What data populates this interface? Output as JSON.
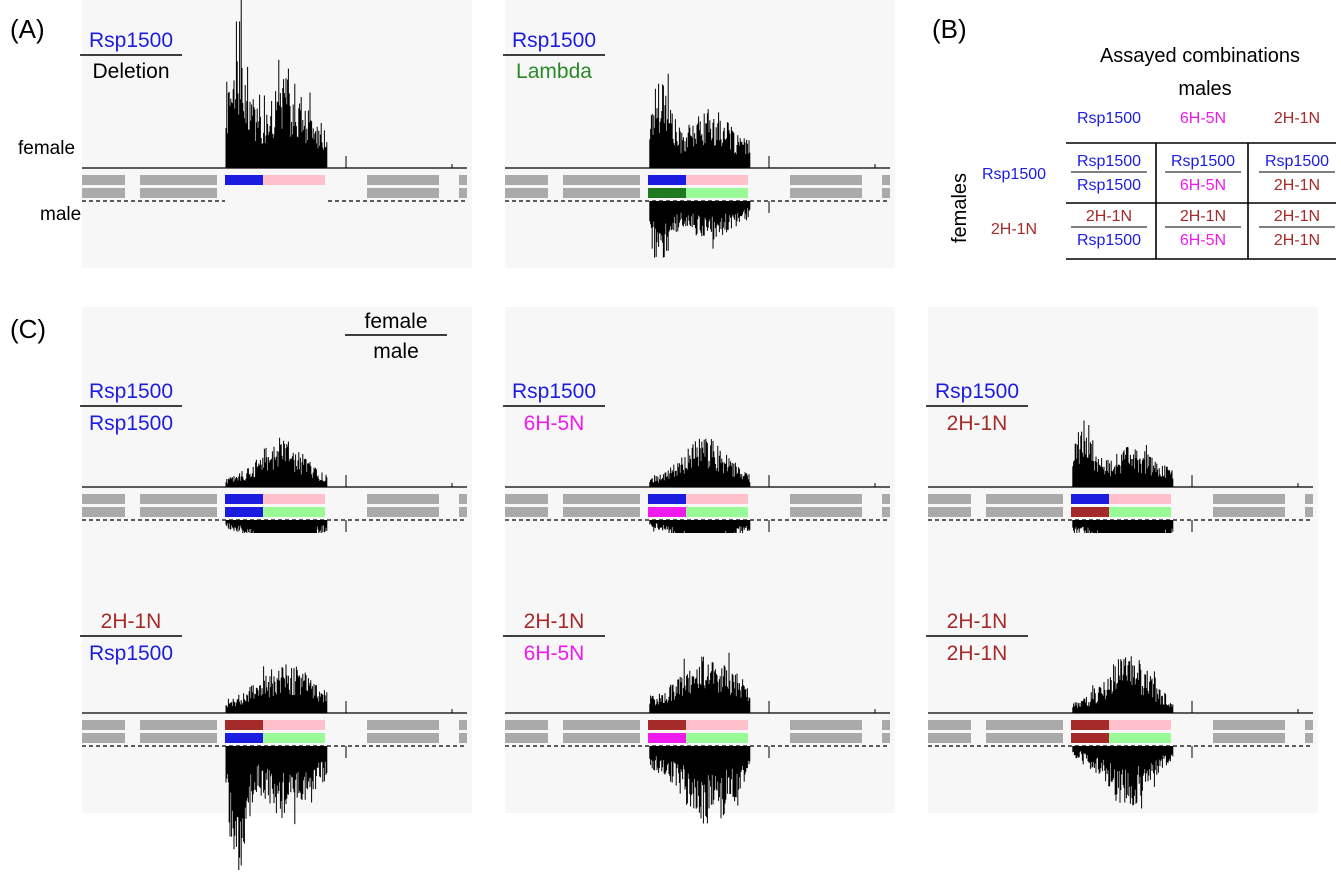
{
  "colors": {
    "rsp1500": "#1c1ce0",
    "h6_5n": "#ee1aee",
    "h2_1n": "#a52a2a",
    "lambda": "#2a8a2a",
    "lambda_bar": "#1f7a1f",
    "pink_bar": "#ffc0cb",
    "green_bar": "#98fb98",
    "gray_bar": "#aaaaaa",
    "panel_bg": "#f7f7f7"
  },
  "labels": {
    "panel_a": "(A)",
    "panel_b": "(B)",
    "panel_c": "(C)",
    "female": "female",
    "male": "male",
    "assayed_combinations": "Assayed combinations",
    "males": "males",
    "females": "females"
  },
  "panel_a": [
    {
      "top": "Rsp1500",
      "top_color": "rsp1500",
      "bottom": "Deletion",
      "bottom_color": "black"
    },
    {
      "top": "Rsp1500",
      "top_color": "rsp1500",
      "bottom": "Lambda",
      "bottom_color": "lambda"
    }
  ],
  "legend_c": {
    "top": "female",
    "bottom": "male"
  },
  "panel_b": {
    "col_headers": [
      {
        "text": "Rsp1500",
        "color": "rsp1500"
      },
      {
        "text": "6H-5N",
        "color": "h6_5n"
      },
      {
        "text": "2H-1N",
        "color": "h2_1n"
      }
    ],
    "row_headers": [
      {
        "text": "Rsp1500",
        "color": "rsp1500"
      },
      {
        "text": "2H-1N",
        "color": "h2_1n"
      }
    ],
    "cells": [
      [
        {
          "top": "Rsp1500",
          "tc": "rsp1500",
          "bottom": "Rsp1500",
          "bc": "rsp1500"
        },
        {
          "top": "Rsp1500",
          "tc": "rsp1500",
          "bottom": "6H-5N",
          "bc": "h6_5n"
        },
        {
          "top": "Rsp1500",
          "tc": "rsp1500",
          "bottom": "2H-1N",
          "bc": "h2_1n"
        }
      ],
      [
        {
          "top": "2H-1N",
          "tc": "h2_1n",
          "bottom": "Rsp1500",
          "bc": "rsp1500"
        },
        {
          "top": "2H-1N",
          "tc": "h2_1n",
          "bottom": "6H-5N",
          "bc": "h6_5n"
        },
        {
          "top": "2H-1N",
          "tc": "h2_1n",
          "bottom": "2H-1N",
          "bc": "h2_1n"
        }
      ]
    ]
  },
  "panel_c": [
    {
      "top": "Rsp1500",
      "tc": "rsp1500",
      "bottom": "Rsp1500",
      "bc": "rsp1500"
    },
    {
      "top": "Rsp1500",
      "tc": "rsp1500",
      "bottom": "6H-5N",
      "bc": "h6_5n"
    },
    {
      "top": "Rsp1500",
      "tc": "rsp1500",
      "bottom": "2H-1N",
      "bc": "h2_1n"
    },
    {
      "top": "2H-1N",
      "tc": "h2_1n",
      "bottom": "Rsp1500",
      "bc": "rsp1500"
    },
    {
      "top": "2H-1N",
      "tc": "h2_1n",
      "bottom": "6H-5N",
      "bc": "h6_5n"
    },
    {
      "top": "2H-1N",
      "tc": "h2_1n",
      "bottom": "2H-1N",
      "bc": "h2_1n"
    }
  ]
}
